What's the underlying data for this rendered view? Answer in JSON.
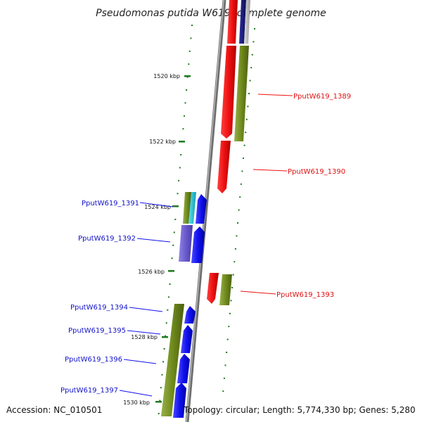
{
  "title": "Pseudomonas putida W619, complete genome",
  "accession": "Accession: NC_010501",
  "topology": "Topology: circular; Length: 5,774,330 bp; Genes: 5,280",
  "colors": {
    "red": "#ee1111",
    "blue": "#1111ee",
    "olive": "#6f8a1c",
    "purple": "#6a5acd",
    "cyan": "#16c3d6",
    "navy": "#16167a",
    "tick": "#1f7a1f",
    "backbone": "#8a8a8a"
  },
  "scale": {
    "labels": [
      "1520 kbp",
      "1522 kbp",
      "1524 kbp",
      "1526 kbp",
      "1528 kbp",
      "1530 kbp"
    ]
  },
  "genes": [
    {
      "name": "PputW619_1389",
      "color": "red"
    },
    {
      "name": "PputW619_1390",
      "color": "red"
    },
    {
      "name": "PputW619_1391",
      "color": "blue"
    },
    {
      "name": "PputW619_1392",
      "color": "blue"
    },
    {
      "name": "PputW619_1393",
      "color": "red"
    },
    {
      "name": "PputW619_1394",
      "color": "blue"
    },
    {
      "name": "PputW619_1395",
      "color": "blue"
    },
    {
      "name": "PputW619_1396",
      "color": "blue"
    },
    {
      "name": "PputW619_1397",
      "color": "blue"
    }
  ]
}
